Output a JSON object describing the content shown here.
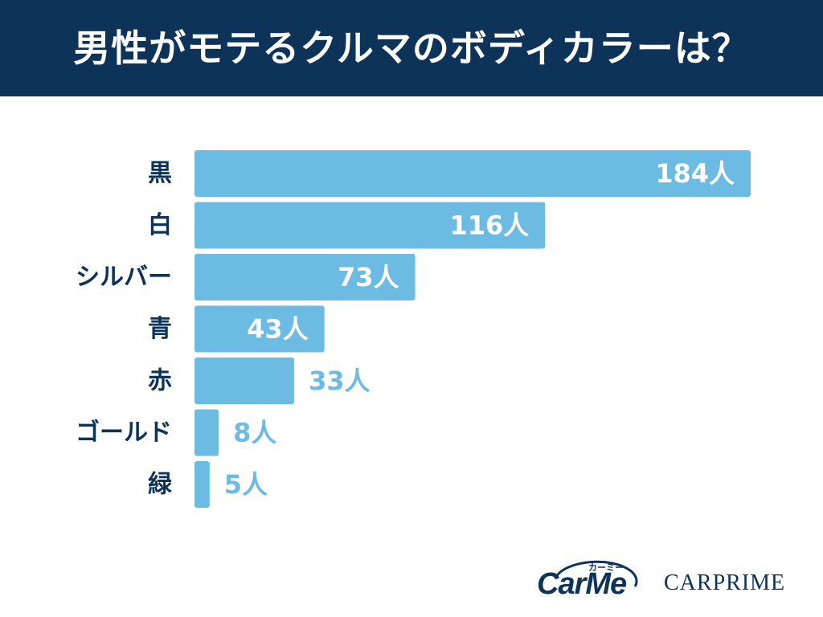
{
  "title": "男性がモテるクルマのボディカラーは？",
  "colors": {
    "header_bg": "#0e3358",
    "bar": "#6cbbe3",
    "label": "#0e3358",
    "value_inside": "#ffffff",
    "value_outside": "#6cbbe3"
  },
  "chart_data": {
    "type": "bar",
    "orientation": "horizontal",
    "categories": [
      "黒",
      "白",
      "シルバー",
      "青",
      "赤",
      "ゴールド",
      "緑"
    ],
    "values": [
      184,
      116,
      73,
      43,
      33,
      8,
      5
    ],
    "value_labels": [
      "184人",
      "116人",
      "73人",
      "43人",
      "33人",
      "8人",
      "5人"
    ],
    "xlim": [
      0,
      184
    ],
    "grid": false,
    "legend": "none"
  },
  "logos": {
    "carme_kana": "カーミー",
    "carme_text": "CarMe",
    "carprime": "CARPRIME"
  }
}
